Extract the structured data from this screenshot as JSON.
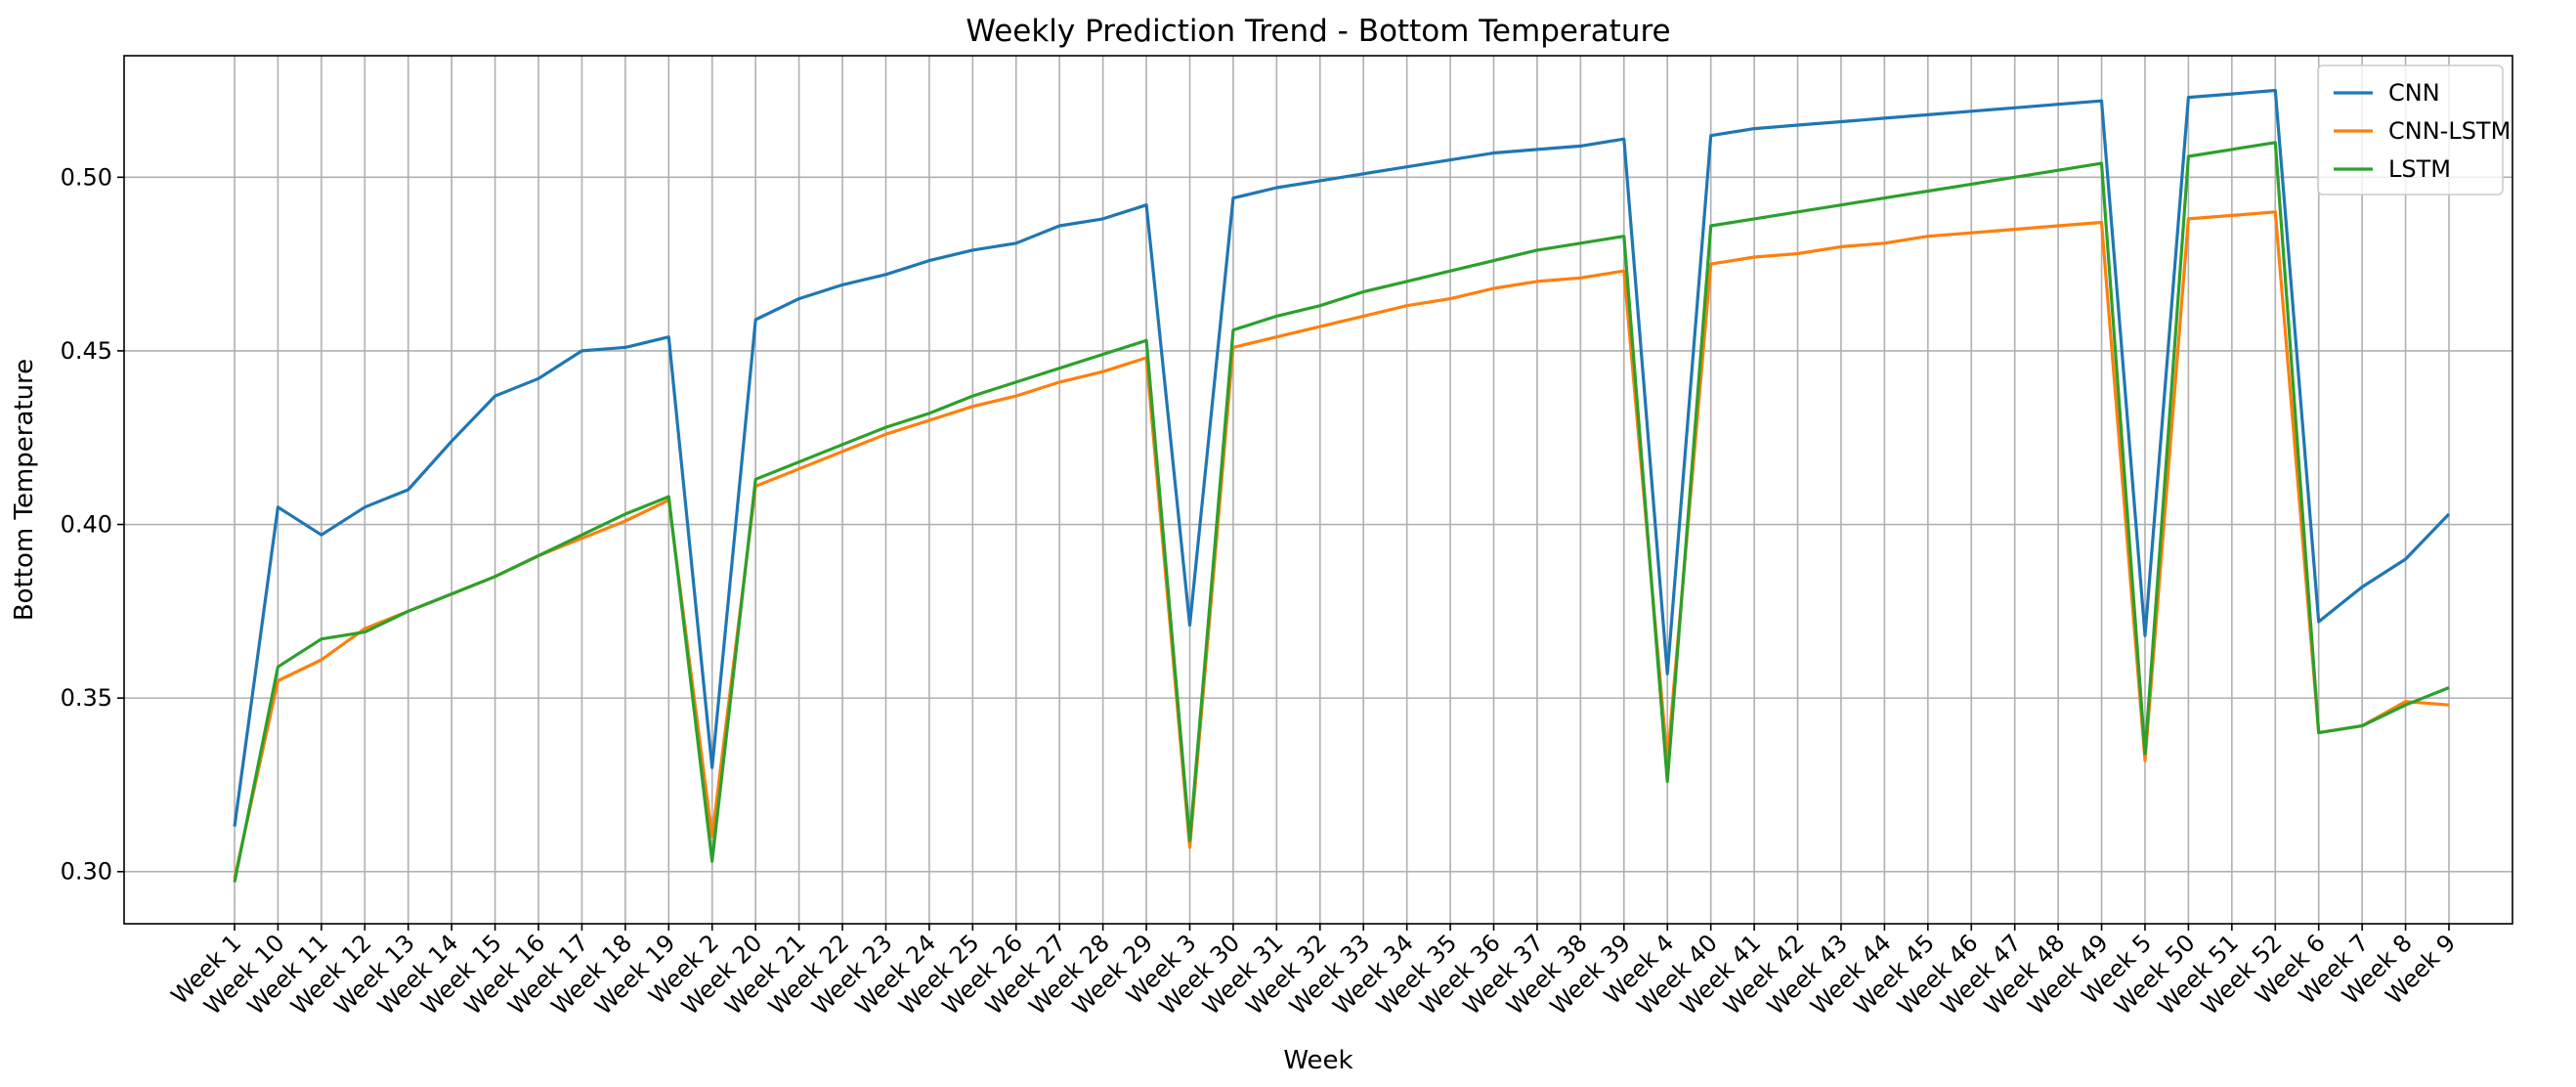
{
  "chart_data": {
    "type": "line",
    "title": "Weekly Prediction Trend - Bottom Temperature",
    "xlabel": "Week",
    "ylabel": "Bottom Temperature",
    "ylim": [
      0.285,
      0.535
    ],
    "yticks": [
      0.3,
      0.35,
      0.4,
      0.45,
      0.5
    ],
    "ytick_labels": [
      "0.30",
      "0.35",
      "0.40",
      "0.45",
      "0.50"
    ],
    "grid": true,
    "legend_position": "top-right",
    "categories": [
      "Week 1",
      "Week 10",
      "Week 11",
      "Week 12",
      "Week 13",
      "Week 14",
      "Week 15",
      "Week 16",
      "Week 17",
      "Week 18",
      "Week 19",
      "Week 2",
      "Week 20",
      "Week 21",
      "Week 22",
      "Week 23",
      "Week 24",
      "Week 25",
      "Week 26",
      "Week 27",
      "Week 28",
      "Week 29",
      "Week 3",
      "Week 30",
      "Week 31",
      "Week 32",
      "Week 33",
      "Week 34",
      "Week 35",
      "Week 36",
      "Week 37",
      "Week 38",
      "Week 39",
      "Week 4",
      "Week 40",
      "Week 41",
      "Week 42",
      "Week 43",
      "Week 44",
      "Week 45",
      "Week 46",
      "Week 47",
      "Week 48",
      "Week 49",
      "Week 5",
      "Week 50",
      "Week 51",
      "Week 52",
      "Week 6",
      "Week 7",
      "Week 8",
      "Week 9"
    ],
    "series": [
      {
        "name": "CNN",
        "color": "#1f77b4",
        "values": [
          0.313,
          0.405,
          0.397,
          0.405,
          0.41,
          0.424,
          0.437,
          0.442,
          0.45,
          0.451,
          0.454,
          0.33,
          0.459,
          0.465,
          0.469,
          0.472,
          0.476,
          0.479,
          0.481,
          0.486,
          0.488,
          0.492,
          0.371,
          0.494,
          0.497,
          0.499,
          0.501,
          0.503,
          0.505,
          0.507,
          0.508,
          0.509,
          0.511,
          0.357,
          0.512,
          0.514,
          0.515,
          0.516,
          0.517,
          0.518,
          0.519,
          0.52,
          0.521,
          0.522,
          0.368,
          0.523,
          0.524,
          0.525,
          0.372,
          0.382,
          0.39,
          0.403
        ]
      },
      {
        "name": "CNN-LSTM",
        "color": "#ff7f0e",
        "values": [
          0.298,
          0.355,
          0.361,
          0.37,
          0.375,
          0.38,
          0.385,
          0.391,
          0.396,
          0.401,
          0.407,
          0.31,
          0.411,
          0.416,
          0.421,
          0.426,
          0.43,
          0.434,
          0.437,
          0.441,
          0.444,
          0.448,
          0.307,
          0.451,
          0.454,
          0.457,
          0.46,
          0.463,
          0.465,
          0.468,
          0.47,
          0.471,
          0.473,
          0.332,
          0.475,
          0.477,
          0.478,
          0.48,
          0.481,
          0.483,
          0.484,
          0.485,
          0.486,
          0.487,
          0.332,
          0.488,
          0.489,
          0.49,
          0.34,
          0.342,
          0.349,
          0.348
        ]
      },
      {
        "name": "LSTM",
        "color": "#2ca02c",
        "values": [
          0.297,
          0.359,
          0.367,
          0.369,
          0.375,
          0.38,
          0.385,
          0.391,
          0.397,
          0.403,
          0.408,
          0.303,
          0.413,
          0.418,
          0.423,
          0.428,
          0.432,
          0.437,
          0.441,
          0.445,
          0.449,
          0.453,
          0.309,
          0.456,
          0.46,
          0.463,
          0.467,
          0.47,
          0.473,
          0.476,
          0.479,
          0.481,
          0.483,
          0.326,
          0.486,
          0.488,
          0.49,
          0.492,
          0.494,
          0.496,
          0.498,
          0.5,
          0.502,
          0.504,
          0.334,
          0.506,
          0.508,
          0.51,
          0.34,
          0.342,
          0.348,
          0.353
        ]
      }
    ]
  }
}
